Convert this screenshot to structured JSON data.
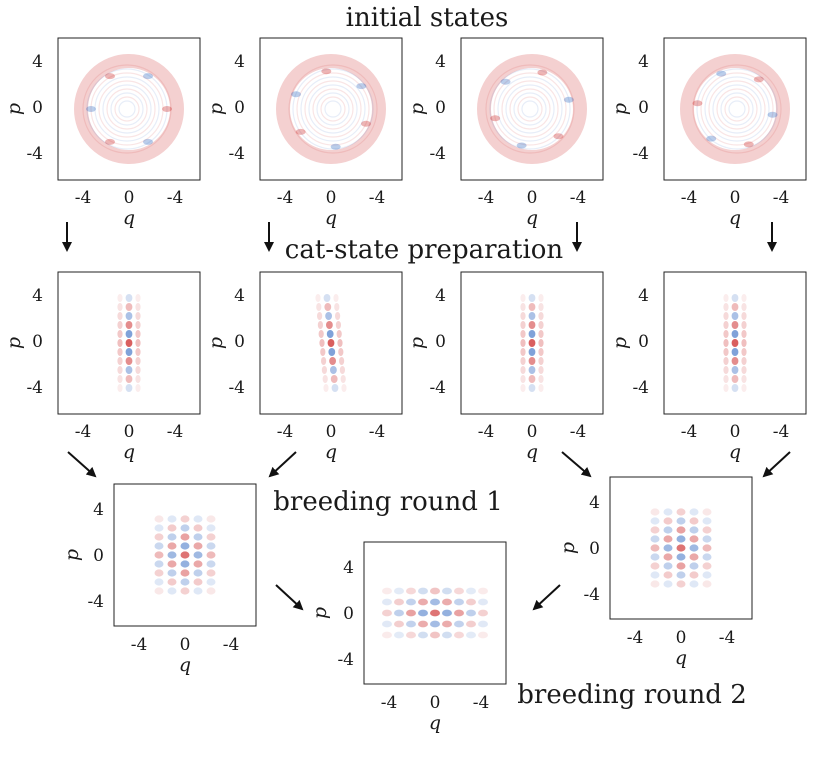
{
  "title": "initial states",
  "stage_labels": {
    "cat_state": "cat-state preparation",
    "round1": "breeding round 1",
    "round2": "breeding round 2"
  },
  "axis": {
    "xlabel": "q",
    "ylabel": "p",
    "xticks": [
      "-4",
      "0",
      "-4"
    ],
    "yticks": [
      "4",
      "0",
      "-4"
    ]
  },
  "colors": {
    "positive": "#cc2a2a",
    "negative": "#3a6fc4",
    "arrow": "#111111"
  },
  "panels": [
    {
      "id": "init-1",
      "stage": "initial",
      "pattern": "ring"
    },
    {
      "id": "init-2",
      "stage": "initial",
      "pattern": "ring"
    },
    {
      "id": "init-3",
      "stage": "initial",
      "pattern": "ring"
    },
    {
      "id": "init-4",
      "stage": "initial",
      "pattern": "ring"
    },
    {
      "id": "cat-1",
      "stage": "cat",
      "pattern": "vertical-stripes"
    },
    {
      "id": "cat-2",
      "stage": "cat",
      "pattern": "vertical-stripes"
    },
    {
      "id": "cat-3",
      "stage": "cat",
      "pattern": "vertical-stripes"
    },
    {
      "id": "cat-4",
      "stage": "cat",
      "pattern": "vertical-stripes"
    },
    {
      "id": "breed1-left",
      "stage": "round1",
      "pattern": "grid"
    },
    {
      "id": "breed1-right",
      "stage": "round1",
      "pattern": "grid"
    },
    {
      "id": "breed2",
      "stage": "round2",
      "pattern": "horizontal-grid"
    }
  ]
}
